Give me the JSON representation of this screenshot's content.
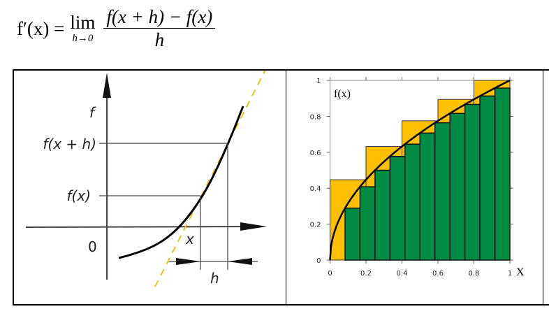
{
  "formula": {
    "lhs": "f′(x) =",
    "lim": "lim",
    "lim_sub": "h→0",
    "numerator": "f(x + h) − f(x)",
    "denominator": "h"
  },
  "derivative_diagram": {
    "y_axis_label": "f",
    "label_fxh": "f(x + h)",
    "label_fx": "f(x)",
    "origin_label": "0",
    "x_label": "x",
    "h_label": "h",
    "colors": {
      "curve": "#000000",
      "tangent": "#f5b800"
    }
  },
  "chart_data": {
    "type": "bar",
    "title": "",
    "ylabel": "f(x)",
    "xlabel": "X",
    "xlim": [
      0,
      1
    ],
    "ylim": [
      0,
      1
    ],
    "x_ticks": [
      "0",
      "0.2",
      "0.4",
      "0.6",
      "0.8",
      "1"
    ],
    "y_ticks": [
      "0",
      "0.2",
      "0.4",
      "0.6",
      "0.8",
      "1"
    ],
    "curve": "f(x) = sqrt(x)",
    "upper_rectangles": {
      "color": "#ffc000",
      "x_start": [
        0,
        0.2,
        0.4,
        0.6,
        0.8
      ],
      "width": 0.2,
      "values": [
        0.447,
        0.632,
        0.775,
        0.894,
        1.0
      ]
    },
    "lower_rectangles": {
      "color": "#008c45",
      "x_start": [
        0.0833,
        0.1667,
        0.25,
        0.3333,
        0.4167,
        0.5,
        0.5833,
        0.6667,
        0.75,
        0.8333,
        0.9167
      ],
      "width": 0.0833,
      "values": [
        0.289,
        0.408,
        0.5,
        0.577,
        0.645,
        0.707,
        0.764,
        0.816,
        0.866,
        0.913,
        0.957
      ]
    }
  }
}
